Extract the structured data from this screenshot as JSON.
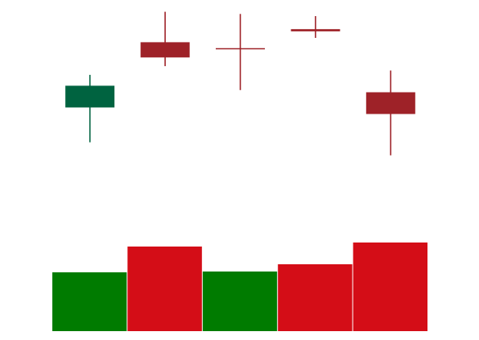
{
  "chart_data": {
    "type": "candlestick",
    "title": "",
    "xlabel": "",
    "ylabel": "",
    "grid": false,
    "legend": "none",
    "axes_visible": false,
    "price_range": [
      0,
      100
    ],
    "volume_range": [
      0,
      110
    ],
    "candles": [
      {
        "open": 58,
        "high": 73,
        "low": 42,
        "close": 68
      },
      {
        "open": 88,
        "high": 102,
        "low": 77,
        "close": 81
      },
      {
        "open": 85,
        "high": 101,
        "low": 66,
        "close": 85
      },
      {
        "open": 94,
        "high": 100,
        "low": 90,
        "close": 93
      },
      {
        "open": 65,
        "high": 75,
        "low": 36,
        "close": 55
      }
    ],
    "volume": [
      73,
      105,
      74,
      83,
      110
    ],
    "colors": {
      "up": "#006340",
      "down": "#9e2228",
      "volume_up": "#007b00",
      "volume_down": "#d40d17",
      "background": "#ffffff"
    }
  }
}
